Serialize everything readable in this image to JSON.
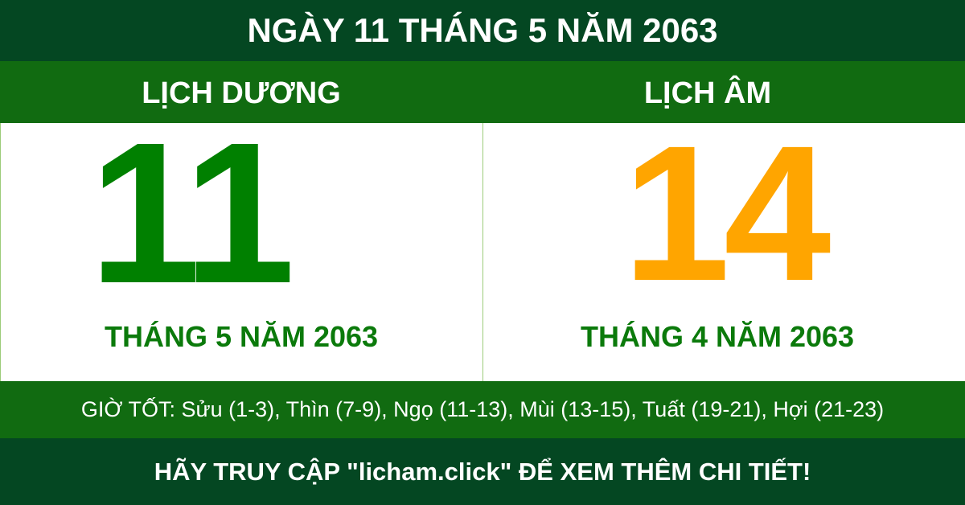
{
  "header": {
    "title": "NGÀY 11 THÁNG 5 NĂM 2063"
  },
  "solar": {
    "label": "LỊCH DƯƠNG",
    "day": "11",
    "month_year": "THÁNG 5 NĂM 2063",
    "color": "#008000"
  },
  "lunar": {
    "label": "LỊCH ÂM",
    "day": "14",
    "month_year": "THÁNG 4 NĂM 2063",
    "color": "#ffa500"
  },
  "good_hours": "GIỜ TỐT: Sửu (1-3), Thìn (7-9), Ngọ (11-13), Mùi (13-15), Tuất (19-21), Hợi (21-23)",
  "footer": {
    "cta": "HÃY TRUY CẬP \"licham.click\" ĐỂ XEM THÊM CHI TIẾT!"
  },
  "colors": {
    "dark_green": "#044722",
    "mid_green": "#116b11"
  }
}
